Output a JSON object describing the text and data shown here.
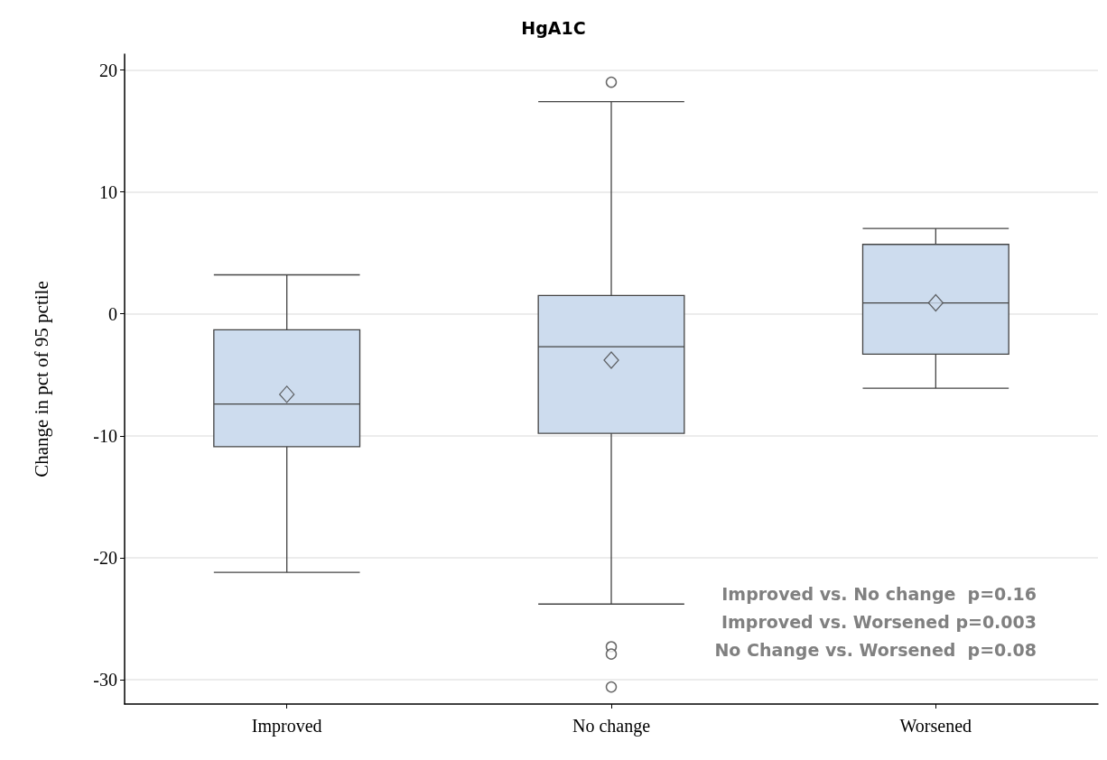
{
  "chart_data": {
    "type": "box",
    "title": "HgA1C",
    "ylabel": "Change in pct of 95 pctile",
    "categories": [
      "Improved",
      "No change",
      "Worsened"
    ],
    "color": "#cddcee",
    "boxes": [
      {
        "low": -21.2,
        "q1": -10.9,
        "median": -7.4,
        "q3": -1.3,
        "high": 3.2,
        "mean": -6.6
      },
      {
        "low": -23.8,
        "q1": -9.8,
        "median": -2.7,
        "q3": 1.5,
        "high": 17.4,
        "mean": -3.8,
        "outliers": [
          19.0,
          -27.3,
          -27.9,
          -30.6
        ]
      },
      {
        "low": -6.1,
        "q1": -3.3,
        "median": 0.9,
        "q3": 5.7,
        "high": 7.0,
        "mean": 0.9
      }
    ],
    "ylim": [
      -32,
      21.3
    ],
    "yticks": [
      -30,
      -20,
      -10,
      0,
      10,
      20
    ],
    "grid": "y",
    "annotations": [
      "Improved vs. No change  p=0.16",
      "Improved vs. Worsened p=0.003",
      "No Change vs. Worsened  p=0.08"
    ]
  }
}
